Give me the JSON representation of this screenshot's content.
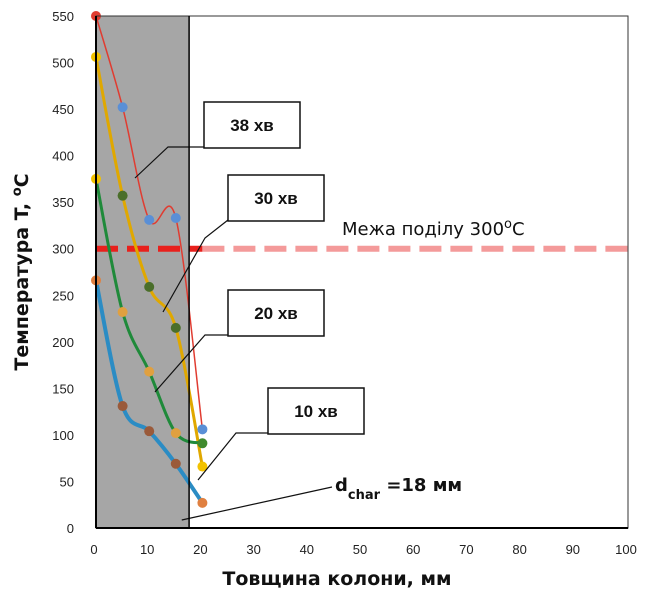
{
  "chart_data": {
    "type": "line",
    "title": "",
    "xlabel": "Товщина колони, мм",
    "ylabel_prefix": "Температура T, ",
    "ylabel_sup": "o",
    "ylabel_unit": "C",
    "xlim": [
      0,
      100
    ],
    "ylim": [
      0,
      550
    ],
    "x_ticks": [
      0,
      10,
      20,
      30,
      40,
      50,
      60,
      70,
      80,
      90,
      100
    ],
    "y_ticks": [
      0,
      50,
      100,
      150,
      200,
      250,
      300,
      350,
      400,
      450,
      500,
      550
    ],
    "grid": false,
    "char_zone": {
      "from": 0,
      "to": 17.5,
      "color": "#a6a6a6"
    },
    "threshold": {
      "value": 300,
      "label_prefix": "Межа поділу 300",
      "label_sup": "o",
      "label_unit": "C",
      "color_left": "#e8201c",
      "color_right": "#f49a9a",
      "split_x": 20
    },
    "d_char": {
      "value": 18,
      "label_main": "d",
      "label_sub": "char",
      "label_rest": " =18 мм"
    },
    "series": [
      {
        "name": "38  хв",
        "line_color": "#e03c31",
        "x": [
          0,
          5,
          10,
          15,
          20
        ],
        "y": [
          550,
          452,
          331,
          333,
          106
        ],
        "marker_colors": [
          "#e03c31",
          "#5a8fd6",
          "#5a8fd6",
          "#5a8fd6",
          "#5a8fd6"
        ]
      },
      {
        "name": "30  хв",
        "line_color": "#e0a800",
        "x": [
          0,
          5,
          10,
          15,
          20
        ],
        "y": [
          506,
          357,
          259,
          215,
          66
        ],
        "marker_colors": [
          "#f2c200",
          "#4a6e2a",
          "#4a6e2a",
          "#4a6e2a",
          "#f2c200"
        ]
      },
      {
        "name": "20  хв",
        "line_color": "#1f8a3a",
        "x": [
          0,
          5,
          10,
          15,
          20
        ],
        "y": [
          375,
          232,
          168,
          102,
          91
        ],
        "marker_colors": [
          "#f2c200",
          "#e0a040",
          "#e0a040",
          "#e0a040",
          "#3f8a2e"
        ]
      },
      {
        "name": "10  хв",
        "line_color": "#2b8cc4",
        "x": [
          0,
          5,
          10,
          15,
          20
        ],
        "y": [
          266,
          131,
          104,
          69,
          27
        ],
        "marker_colors": [
          "#e08040",
          "#9a5a3a",
          "#9a5a3a",
          "#9a5a3a",
          "#e08040"
        ]
      }
    ]
  }
}
